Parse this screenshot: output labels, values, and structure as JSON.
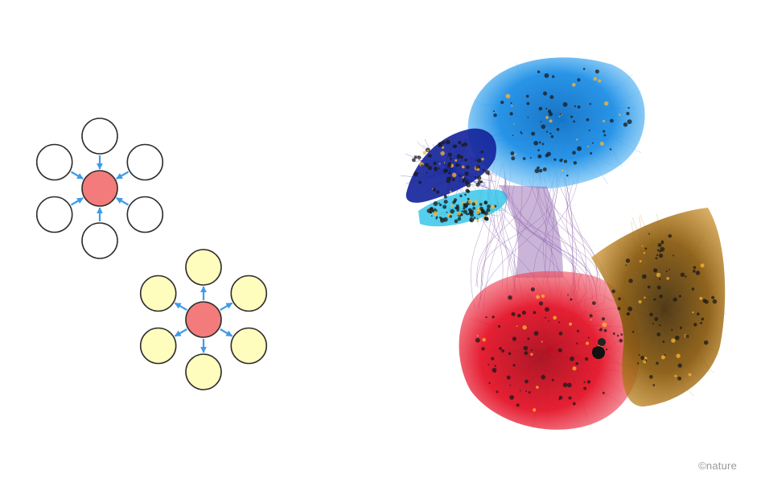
{
  "credit": {
    "text": "©nature"
  },
  "diagrams": [
    {
      "id": "incoming",
      "center_color": "#f47b7b",
      "leaf_color": "#ffffff",
      "arrow_color": "#3d9be9",
      "arrow_direction": "inward",
      "leaf_count": 6
    },
    {
      "id": "outgoing",
      "center_color": "#f47b7b",
      "leaf_color": "#fffdbd",
      "arrow_color": "#3d9be9",
      "arrow_direction": "outward",
      "leaf_count": 6
    }
  ],
  "network": {
    "clusters": [
      {
        "name": "light-blue-cluster",
        "color": "#1e8fe6"
      },
      {
        "name": "dark-blue-cluster",
        "color": "#12219a"
      },
      {
        "name": "cyan-cluster",
        "color": "#2cc3e8"
      },
      {
        "name": "red-cluster",
        "color": "#e41429"
      },
      {
        "name": "gold-cluster",
        "color": "#b77a12"
      }
    ],
    "bridge_color": "#8a5aa8"
  }
}
